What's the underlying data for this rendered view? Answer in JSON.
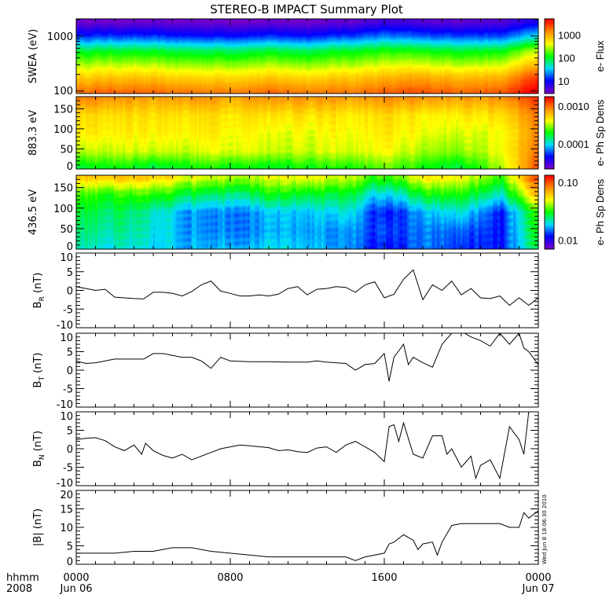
{
  "title": "STEREO-B IMPACT Summary Plot",
  "timestamp": "Wed Jun 8 18:06:30 2010",
  "x_axis": {
    "label_line1": "hhmm",
    "label_line2": "2008",
    "range_hours": [
      0,
      24
    ],
    "ticks": [
      {
        "hour": 0,
        "line1": "0000",
        "line2": "Jun 06"
      },
      {
        "hour": 8,
        "line1": "0800",
        "line2": ""
      },
      {
        "hour": 16,
        "line1": "1600",
        "line2": ""
      },
      {
        "hour": 24,
        "line1": "0000",
        "line2": "Jun 07"
      }
    ]
  },
  "colormap": [
    "#7800c8",
    "#0000ff",
    "#00dcff",
    "#00ff00",
    "#ffff00",
    "#ff8c00",
    "#ff0000"
  ],
  "chart_data": [
    {
      "type": "heatmap",
      "ylabel": "SWEA (eV)",
      "yscale": "log",
      "ylim": [
        90,
        2050
      ],
      "yticks": [
        {
          "value": 1000,
          "label": "1000"
        },
        {
          "value": 100,
          "label": "100"
        }
      ],
      "colorbar": {
        "label": "e- Flux",
        "scale": "log",
        "log_range": [
          0.45,
          3.7
        ],
        "ticks": [
          {
            "value": 1000,
            "label": "1000"
          },
          {
            "value": 100,
            "label": "100"
          },
          {
            "value": 10,
            "label": "10"
          }
        ]
      },
      "times": [
        0,
        2,
        4,
        6,
        8,
        10,
        12,
        14,
        16,
        18,
        20,
        22,
        24
      ],
      "bins": [
        100,
        180,
        300,
        550,
        1000,
        1800
      ],
      "log_values": [
        [
          3.25,
          3.3,
          3.25,
          3.2,
          3.2,
          3.25,
          3.2,
          3.2,
          3.3,
          3.35,
          3.3,
          3.3,
          3.8
        ],
        [
          2.85,
          2.9,
          2.85,
          2.8,
          2.8,
          2.85,
          2.8,
          2.85,
          2.95,
          3.0,
          2.95,
          2.95,
          3.5
        ],
        [
          2.45,
          2.5,
          2.45,
          2.4,
          2.4,
          2.45,
          2.4,
          2.45,
          2.55,
          2.55,
          2.5,
          2.5,
          3.0
        ],
        [
          1.95,
          2.0,
          1.95,
          1.9,
          1.9,
          1.95,
          1.9,
          2.0,
          2.1,
          2.05,
          2.0,
          2.0,
          2.5
        ],
        [
          1.1,
          1.15,
          1.1,
          1.05,
          1.05,
          1.1,
          1.05,
          1.15,
          1.3,
          1.2,
          1.2,
          1.15,
          1.6
        ],
        [
          0.5,
          0.5,
          0.5,
          0.5,
          0.5,
          0.5,
          0.5,
          0.55,
          0.7,
          0.6,
          0.6,
          0.6,
          0.9
        ]
      ]
    },
    {
      "type": "heatmap",
      "ylabel": "883.3 eV",
      "yscale": "linear",
      "ylim": [
        0,
        180
      ],
      "yticks": [
        {
          "value": 0,
          "label": "0"
        },
        {
          "value": 50,
          "label": "50"
        },
        {
          "value": 100,
          "label": "100"
        },
        {
          "value": 150,
          "label": "150"
        }
      ],
      "colorbar": {
        "label": "e- Ph Sp Dens",
        "scale": "log",
        "log_range": [
          -4.67,
          -2.75
        ],
        "ticks": [
          {
            "value": 0.001,
            "label": "0.0010"
          },
          {
            "value": 0.0001,
            "label": "0.0001"
          }
        ]
      },
      "times": [
        0,
        2,
        4,
        6,
        8,
        10,
        12,
        14,
        16,
        18,
        20,
        22,
        24
      ],
      "bins": [
        5,
        45,
        90,
        135,
        175
      ],
      "log_values": [
        [
          -3.8,
          -3.7,
          -3.8,
          -3.7,
          -3.7,
          -3.75,
          -3.7,
          -3.7,
          -3.6,
          -3.7,
          -3.8,
          -3.5,
          -2.9
        ],
        [
          -3.5,
          -3.45,
          -3.45,
          -3.45,
          -3.4,
          -3.45,
          -3.45,
          -3.45,
          -3.4,
          -3.5,
          -3.55,
          -3.4,
          -3.0
        ],
        [
          -3.35,
          -3.35,
          -3.35,
          -3.35,
          -3.35,
          -3.4,
          -3.4,
          -3.4,
          -3.35,
          -3.4,
          -3.45,
          -3.4,
          -3.05
        ],
        [
          -3.3,
          -3.3,
          -3.3,
          -3.3,
          -3.3,
          -3.3,
          -3.3,
          -3.35,
          -3.3,
          -3.35,
          -3.35,
          -3.3,
          -3.0
        ],
        [
          -3.05,
          -3.1,
          -3.15,
          -3.1,
          -3.15,
          -3.1,
          -3.1,
          -3.15,
          -3.1,
          -3.1,
          -3.15,
          -3.1,
          -2.85
        ]
      ]
    },
    {
      "type": "heatmap",
      "ylabel": "436.5 eV",
      "yscale": "linear",
      "ylim": [
        0,
        180
      ],
      "yticks": [
        {
          "value": 0,
          "label": "0"
        },
        {
          "value": 50,
          "label": "50"
        },
        {
          "value": 100,
          "label": "100"
        },
        {
          "value": 150,
          "label": "150"
        }
      ],
      "colorbar": {
        "label": "e- Ph Sp Dens",
        "scale": "log",
        "log_range": [
          -2.16,
          -0.88
        ],
        "ticks": [
          {
            "value": 0.1,
            "label": "0.10"
          },
          {
            "value": 0.01,
            "label": "0.01"
          }
        ]
      },
      "times": [
        0,
        2,
        4,
        6,
        8,
        10,
        12,
        14,
        16,
        18,
        20,
        22,
        24
      ],
      "bins": [
        5,
        45,
        90,
        135,
        175
      ],
      "log_values": [
        [
          -1.65,
          -1.7,
          -1.75,
          -1.75,
          -1.75,
          -1.75,
          -1.75,
          -1.8,
          -1.95,
          -1.85,
          -1.9,
          -1.95,
          -1.6
        ],
        [
          -1.6,
          -1.65,
          -1.72,
          -1.78,
          -1.8,
          -1.8,
          -1.78,
          -1.8,
          -1.9,
          -1.85,
          -1.85,
          -1.95,
          -1.55
        ],
        [
          -1.55,
          -1.6,
          -1.7,
          -1.78,
          -1.8,
          -1.78,
          -1.75,
          -1.7,
          -1.95,
          -1.8,
          -1.7,
          -1.95,
          -1.5
        ],
        [
          -1.45,
          -1.5,
          -1.5,
          -1.55,
          -1.6,
          -1.55,
          -1.55,
          -1.55,
          -1.75,
          -1.55,
          -1.5,
          -1.7,
          -1.2
        ],
        [
          -1.2,
          -1.2,
          -1.25,
          -1.3,
          -1.35,
          -1.35,
          -1.3,
          -1.35,
          -1.5,
          -1.3,
          -1.3,
          -1.5,
          -1.0
        ]
      ]
    },
    {
      "type": "line",
      "ylabel_main": "B",
      "ylabel_sub": "R",
      "ylabel_unit": "(nT)",
      "ylim": [
        -10,
        10
      ],
      "yticks": [
        {
          "value": 10,
          "label": "10"
        },
        {
          "value": 5,
          "label": "5"
        },
        {
          "value": 0,
          "label": "0"
        },
        {
          "value": -5,
          "label": "-5"
        },
        {
          "value": -10,
          "label": "-10"
        }
      ],
      "points": [
        [
          0,
          1.0
        ],
        [
          0.5,
          0.5
        ],
        [
          1,
          0
        ],
        [
          1.5,
          0.3
        ],
        [
          2,
          -1.8
        ],
        [
          2.5,
          -2
        ],
        [
          3,
          -2.2
        ],
        [
          3.5,
          -2.3
        ],
        [
          4,
          -0.5
        ],
        [
          4.5,
          -0.5
        ],
        [
          5,
          -0.8
        ],
        [
          5.5,
          -1.5
        ],
        [
          6,
          -0.3
        ],
        [
          6.5,
          1.5
        ],
        [
          7,
          2.5
        ],
        [
          7.5,
          -0.2
        ],
        [
          8,
          -0.8
        ],
        [
          8.5,
          -1.5
        ],
        [
          9,
          -1.5
        ],
        [
          9.5,
          -1.2
        ],
        [
          10,
          -1.5
        ],
        [
          10.5,
          -1.0
        ],
        [
          11,
          0.5
        ],
        [
          11.5,
          1.0
        ],
        [
          12,
          -1.2
        ],
        [
          12.5,
          0.3
        ],
        [
          13,
          0.5
        ],
        [
          13.5,
          1.0
        ],
        [
          14,
          0.8
        ],
        [
          14.5,
          -0.5
        ],
        [
          15,
          1.5
        ],
        [
          15.5,
          2.3
        ],
        [
          16,
          -2
        ],
        [
          16.5,
          -1
        ],
        [
          17,
          3
        ],
        [
          17.5,
          5.5
        ],
        [
          18,
          -2.5
        ],
        [
          18.5,
          1.5
        ],
        [
          19,
          0
        ],
        [
          19.5,
          2.5
        ],
        [
          20,
          -1.2
        ],
        [
          20.5,
          0.5
        ],
        [
          21,
          -2
        ],
        [
          21.5,
          -2.2
        ],
        [
          22,
          -1.5
        ],
        [
          22.5,
          -4
        ],
        [
          23,
          -2
        ],
        [
          23.5,
          -4
        ],
        [
          24,
          -2
        ]
      ]
    },
    {
      "type": "line",
      "ylabel_main": "B",
      "ylabel_sub": "T",
      "ylabel_unit": "(nT)",
      "ylim": [
        -10,
        10
      ],
      "yticks": [
        {
          "value": 10,
          "label": "10"
        },
        {
          "value": 5,
          "label": "5"
        },
        {
          "value": 0,
          "label": "0"
        },
        {
          "value": -5,
          "label": "-5"
        },
        {
          "value": -10,
          "label": "-10"
        }
      ],
      "points": [
        [
          0,
          2.5
        ],
        [
          0.5,
          1.8
        ],
        [
          1,
          2
        ],
        [
          1.5,
          2.5
        ],
        [
          2,
          3
        ],
        [
          3,
          3
        ],
        [
          3.5,
          3
        ],
        [
          4,
          4.5
        ],
        [
          4.5,
          4.5
        ],
        [
          5,
          4
        ],
        [
          5.5,
          3.5
        ],
        [
          6,
          3.5
        ],
        [
          6.5,
          2.5
        ],
        [
          7,
          0.5
        ],
        [
          7.5,
          3.5
        ],
        [
          8,
          2.5
        ],
        [
          9,
          2.3
        ],
        [
          10,
          2.3
        ],
        [
          11,
          2.2
        ],
        [
          12,
          2.2
        ],
        [
          12.5,
          2.5
        ],
        [
          13,
          2.2
        ],
        [
          14,
          1.8
        ],
        [
          14.5,
          0
        ],
        [
          15,
          1.5
        ],
        [
          15.5,
          1.8
        ],
        [
          16,
          4.5
        ],
        [
          16.25,
          -3
        ],
        [
          16.5,
          3.5
        ],
        [
          17,
          7
        ],
        [
          17.25,
          1.5
        ],
        [
          17.5,
          3.5
        ],
        [
          18,
          2
        ],
        [
          18.5,
          0.8
        ],
        [
          19,
          7
        ],
        [
          19.5,
          10
        ],
        [
          20,
          10.5
        ],
        [
          20.5,
          9
        ],
        [
          21,
          8
        ],
        [
          21.5,
          6.5
        ],
        [
          22,
          10
        ],
        [
          22.5,
          7
        ],
        [
          23,
          10
        ],
        [
          23.25,
          6
        ],
        [
          23.5,
          5
        ],
        [
          24,
          1.5
        ]
      ]
    },
    {
      "type": "line",
      "ylabel_main": "B",
      "ylabel_sub": "N",
      "ylabel_unit": "(nT)",
      "ylim": [
        -10,
        10
      ],
      "yticks": [
        {
          "value": 10,
          "label": "10"
        },
        {
          "value": 5,
          "label": "5"
        },
        {
          "value": 0,
          "label": "0"
        },
        {
          "value": -5,
          "label": "-5"
        },
        {
          "value": -10,
          "label": "-10"
        }
      ],
      "points": [
        [
          0,
          2.5
        ],
        [
          0.5,
          2.8
        ],
        [
          1,
          3
        ],
        [
          1.5,
          2.2
        ],
        [
          2,
          0.5
        ],
        [
          2.5,
          -0.5
        ],
        [
          3,
          1
        ],
        [
          3.4,
          -1.5
        ],
        [
          3.6,
          1.5
        ],
        [
          4,
          -0.5
        ],
        [
          4.5,
          -1.8
        ],
        [
          5,
          -2.5
        ],
        [
          5.5,
          -1.5
        ],
        [
          6,
          -3
        ],
        [
          6.5,
          -2
        ],
        [
          7,
          -1
        ],
        [
          7.5,
          0
        ],
        [
          8,
          0.5
        ],
        [
          8.5,
          1
        ],
        [
          9,
          0.8
        ],
        [
          10,
          0.3
        ],
        [
          10.5,
          -0.5
        ],
        [
          11,
          -0.3
        ],
        [
          11.5,
          -0.8
        ],
        [
          12,
          -1
        ],
        [
          12.5,
          0.2
        ],
        [
          13,
          0.5
        ],
        [
          13.5,
          -1
        ],
        [
          14,
          1
        ],
        [
          14.5,
          2
        ],
        [
          15,
          0.5
        ],
        [
          15.5,
          -1
        ],
        [
          16,
          -3.5
        ],
        [
          16.25,
          6
        ],
        [
          16.5,
          6.5
        ],
        [
          16.75,
          2
        ],
        [
          17,
          7
        ],
        [
          17.5,
          -1.5
        ],
        [
          18,
          -2.5
        ],
        [
          18.5,
          3.5
        ],
        [
          19,
          3.5
        ],
        [
          19.25,
          -1.5
        ],
        [
          19.5,
          0
        ],
        [
          20,
          -5
        ],
        [
          20.5,
          -2
        ],
        [
          20.75,
          -8
        ],
        [
          21,
          -4.5
        ],
        [
          21.5,
          -3
        ],
        [
          22,
          -8
        ],
        [
          22.5,
          6
        ],
        [
          23,
          2.5
        ],
        [
          23.25,
          -1.5
        ],
        [
          23.5,
          10
        ],
        [
          23.75,
          10
        ],
        [
          24,
          10
        ]
      ]
    },
    {
      "type": "line",
      "ylabel_main": "|B|",
      "ylabel_sub": "",
      "ylabel_unit": "(nT)",
      "ylim": [
        0,
        20
      ],
      "yticks": [
        {
          "value": 20,
          "label": "20"
        },
        {
          "value": 15,
          "label": "15"
        },
        {
          "value": 10,
          "label": "10"
        },
        {
          "value": 5,
          "label": "5"
        },
        {
          "value": 0,
          "label": "0"
        }
      ],
      "points": [
        [
          0,
          3
        ],
        [
          1,
          3
        ],
        [
          2,
          3
        ],
        [
          3,
          3.5
        ],
        [
          4,
          3.5
        ],
        [
          5,
          4.5
        ],
        [
          6,
          4.5
        ],
        [
          6.5,
          4
        ],
        [
          7,
          3.5
        ],
        [
          8,
          3
        ],
        [
          9,
          2.5
        ],
        [
          10,
          2
        ],
        [
          11,
          2
        ],
        [
          12,
          2
        ],
        [
          13,
          2
        ],
        [
          14,
          2
        ],
        [
          14.5,
          1
        ],
        [
          15,
          2
        ],
        [
          15.5,
          2.5
        ],
        [
          16,
          3
        ],
        [
          16.25,
          5.5
        ],
        [
          16.5,
          6
        ],
        [
          17,
          8
        ],
        [
          17.5,
          6.5
        ],
        [
          17.75,
          4
        ],
        [
          18,
          5.5
        ],
        [
          18.5,
          6
        ],
        [
          18.75,
          2.5
        ],
        [
          19,
          6
        ],
        [
          19.5,
          10.5
        ],
        [
          20,
          11
        ],
        [
          21,
          11
        ],
        [
          22,
          11
        ],
        [
          22.5,
          10
        ],
        [
          23,
          10
        ],
        [
          23.25,
          14
        ],
        [
          23.5,
          12.5
        ],
        [
          24,
          14.5
        ]
      ]
    }
  ]
}
